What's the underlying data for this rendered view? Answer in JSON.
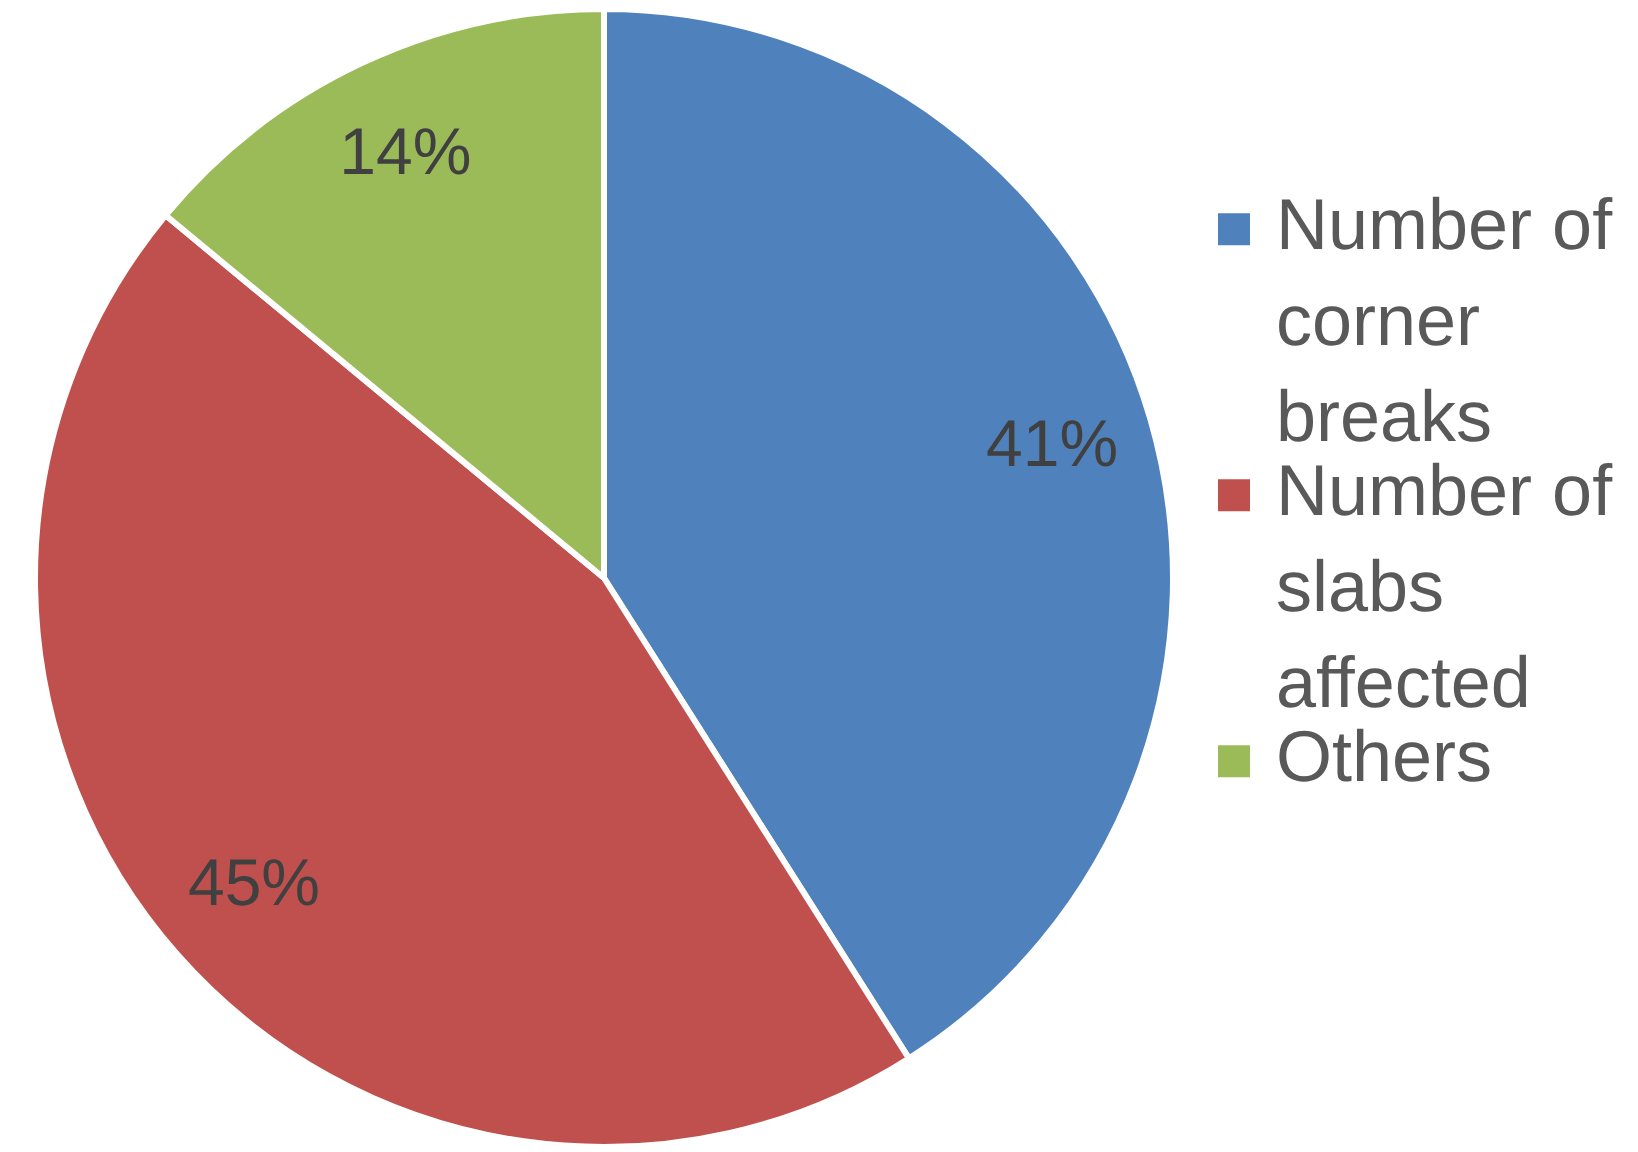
{
  "chart_data": {
    "type": "pie",
    "categories": [
      "Number of corner breaks",
      "Number of slabs affected",
      "Others"
    ],
    "values": [
      41,
      45,
      14
    ],
    "colors": [
      "#4f81bd",
      "#c0504d",
      "#9bbb59"
    ],
    "value_labels": [
      "41%",
      "45%",
      "14%"
    ],
    "legend": "right"
  }
}
